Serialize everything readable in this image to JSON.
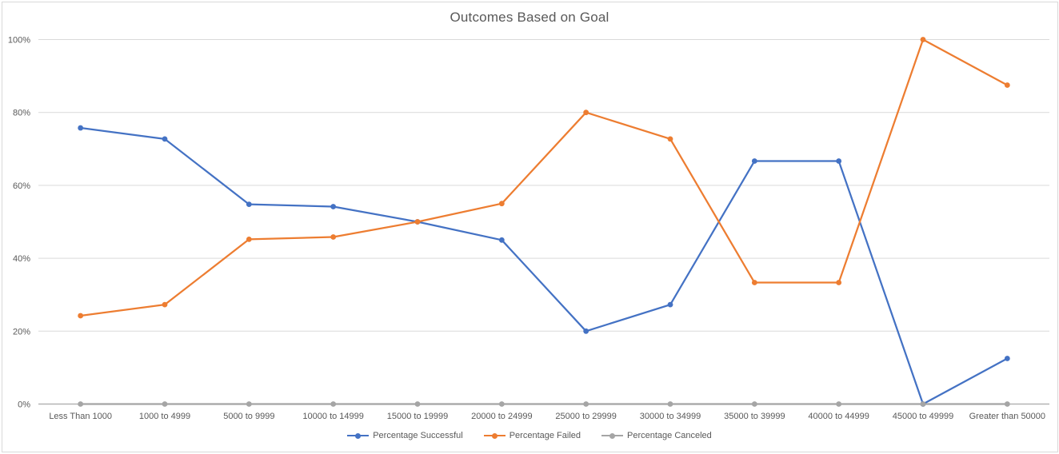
{
  "chart_data": {
    "type": "line",
    "title": "Outcomes Based on Goal",
    "categories": [
      "Less Than 1000",
      "1000 to 4999",
      "5000 to 9999",
      "10000 to 14999",
      "15000 to 19999",
      "20000 to 24999",
      "25000 to 29999",
      "30000 to 34999",
      "35000 to 39999",
      "40000 to 44999",
      "45000 to 49999",
      "Greater than 50000"
    ],
    "series": [
      {
        "name": "Percentage Successful",
        "color": "#4472C4",
        "values": [
          75.76,
          72.73,
          54.8,
          54.17,
          50,
          45,
          20,
          27.27,
          66.67,
          66.67,
          0,
          12.5
        ]
      },
      {
        "name": "Percentage Failed",
        "color": "#ED7D31",
        "values": [
          24.24,
          27.27,
          45.2,
          45.83,
          50,
          55,
          80,
          72.73,
          33.33,
          33.33,
          100,
          87.5
        ]
      },
      {
        "name": "Percentage Canceled",
        "color": "#A5A5A5",
        "values": [
          0,
          0,
          0,
          0,
          0,
          0,
          0,
          0,
          0,
          0,
          0,
          0
        ]
      }
    ],
    "y_ticks": [
      "0%",
      "20%",
      "40%",
      "60%",
      "80%",
      "100%"
    ],
    "y_axis": {
      "min": 0,
      "max": 100,
      "step": 20
    },
    "grid": true,
    "legend_position": "bottom",
    "colors": {
      "gridline": "#D9D9D9",
      "axis_line": "#B3B3B3",
      "axis_text": "#595959",
      "title_text": "#595959",
      "background": "#FFFFFF",
      "border": "#D9D9D9"
    }
  }
}
